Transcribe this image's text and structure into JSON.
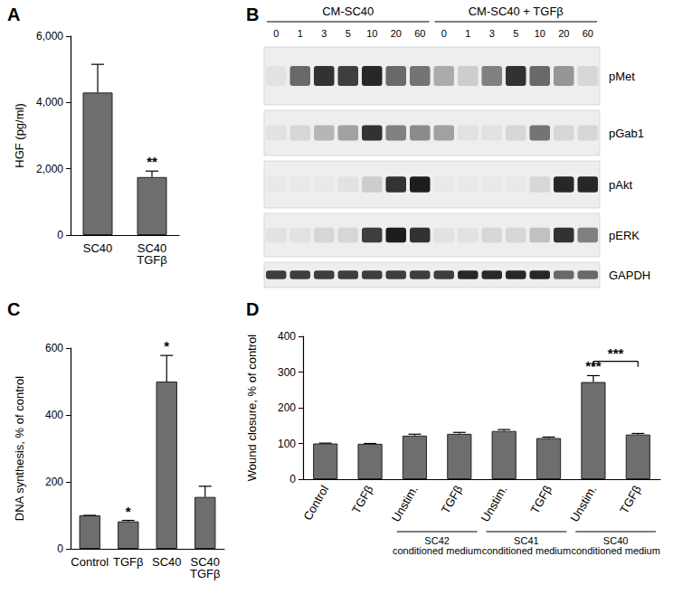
{
  "chart_data": [
    {
      "panel": "A",
      "type": "bar",
      "categories": [
        "SC40",
        "SC40\nTGFβ"
      ],
      "values": [
        4300,
        1750
      ],
      "errors": [
        850,
        180
      ],
      "y_label": "HGF (pg/ml)",
      "ylim": [
        0,
        6000
      ],
      "yticks": [
        0,
        2000,
        4000,
        6000
      ],
      "color": "#6e6e6e",
      "annotations": [
        {
          "category": 1,
          "text": "**"
        }
      ]
    },
    {
      "panel": "C",
      "type": "bar",
      "categories": [
        "Control",
        "TGFβ",
        "SC40",
        "SC40\nTGFβ"
      ],
      "values": [
        100,
        82,
        500,
        155
      ],
      "errors": [
        0,
        3,
        78,
        32
      ],
      "y_label": "DNA synthesis, % of control",
      "ylim": [
        0,
        600
      ],
      "yticks": [
        0,
        200,
        400,
        600
      ],
      "color": "#6e6e6e",
      "annotations": [
        {
          "category": 1,
          "text": "*"
        },
        {
          "category": 2,
          "text": "*"
        }
      ]
    },
    {
      "panel": "D",
      "type": "bar",
      "categories": [
        "Control",
        "TGFβ",
        "Unstim.",
        "TGFβ",
        "Unstim.",
        "TGFβ",
        "Unstim.",
        "TGFβ"
      ],
      "values": [
        100,
        99,
        122,
        127,
        135,
        115,
        272,
        125
      ],
      "errors": [
        1,
        1,
        4,
        4,
        4,
        3,
        18,
        3
      ],
      "y_label": "Wound closure, % of control",
      "ylim": [
        0,
        400
      ],
      "yticks": [
        0,
        100,
        200,
        300,
        400
      ],
      "color": "#6e6e6e",
      "groups": [
        {
          "label": "SC42\nconditioned medium",
          "from": 2,
          "to": 3
        },
        {
          "label": "SC41\nconditioned medium",
          "from": 4,
          "to": 5
        },
        {
          "label": "SC40\nconditioned medium",
          "from": 6,
          "to": 7
        }
      ],
      "annotations": [
        {
          "category": 6,
          "text": "***"
        }
      ],
      "brackets": [
        {
          "from": 6,
          "to": 7,
          "y": 330,
          "text": "***"
        }
      ]
    }
  ],
  "blot": {
    "panel": "B",
    "groups": [
      {
        "label": "CM-SC40",
        "lanes": [
          0,
          1,
          3,
          5,
          10,
          20,
          60
        ]
      },
      {
        "label": "CM-SC40 + TGFβ",
        "lanes": [
          0,
          1,
          3,
          5,
          10,
          20,
          60
        ]
      }
    ],
    "rows": [
      {
        "label": "pMet",
        "band_intensity": [
          0.05,
          0.6,
          0.85,
          0.8,
          0.9,
          0.6,
          0.55,
          0.3,
          0.15,
          0.5,
          0.85,
          0.6,
          0.4,
          0.1
        ]
      },
      {
        "label": "pGab1",
        "band_intensity": [
          0.05,
          0.1,
          0.25,
          0.35,
          0.85,
          0.5,
          0.45,
          0.35,
          0.05,
          0.05,
          0.1,
          0.55,
          0.1,
          0.1
        ]
      },
      {
        "label": "pAkt",
        "band_intensity": [
          0.02,
          0.02,
          0.02,
          0.05,
          0.15,
          0.85,
          0.95,
          0.02,
          0.02,
          0.02,
          0.02,
          0.1,
          0.9,
          0.9
        ]
      },
      {
        "label": "pERK",
        "band_intensity": [
          0.05,
          0.05,
          0.1,
          0.1,
          0.8,
          0.95,
          0.85,
          0.05,
          0.05,
          0.1,
          0.1,
          0.2,
          0.85,
          0.5
        ]
      },
      {
        "label": "GAPDH",
        "band_intensity": [
          0.8,
          0.8,
          0.8,
          0.8,
          0.8,
          0.8,
          0.8,
          0.8,
          0.9,
          0.9,
          0.9,
          0.9,
          0.6,
          0.6
        ]
      }
    ]
  }
}
